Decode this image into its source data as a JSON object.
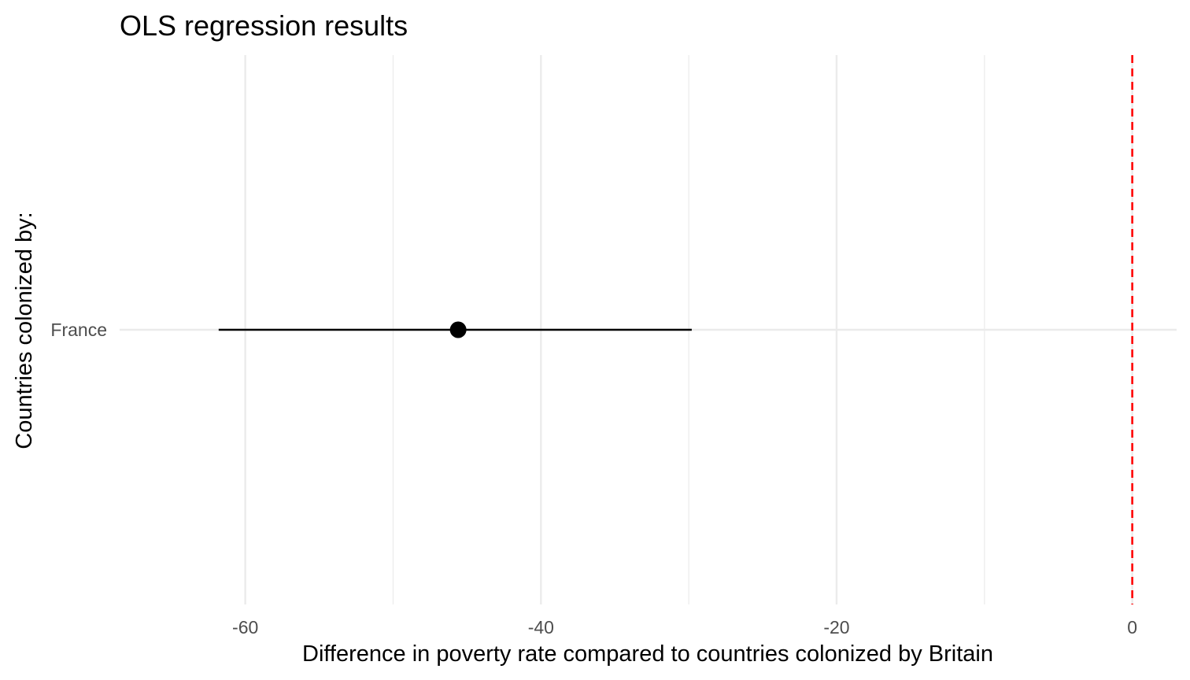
{
  "chart_data": {
    "type": "errorbar",
    "title": "OLS regression results",
    "xlabel": "Difference in poverty rate compared to countries colonized by Britain",
    "ylabel": "Countries colonized by:",
    "xlim": [
      -68.5,
      3
    ],
    "x_ticks": [
      -60,
      -40,
      -20,
      0
    ],
    "x_tick_labels": [
      "-60",
      "-40",
      "-20",
      "0"
    ],
    "x_minor_gridlines": [
      -50,
      -30,
      -10
    ],
    "categories": [
      "France"
    ],
    "estimates": [
      {
        "category": "France",
        "estimate": -45.6,
        "ci_low": -61.8,
        "ci_high": -29.8
      }
    ],
    "reference_line": {
      "x": 0,
      "style": "dashed",
      "color": "#ff0000"
    },
    "grid": true,
    "colors": {
      "point": "#000000",
      "errorbar": "#000000",
      "gridline": "#ebebeb",
      "reference": "#ff0000",
      "tick_text": "#4d4d4d"
    }
  }
}
